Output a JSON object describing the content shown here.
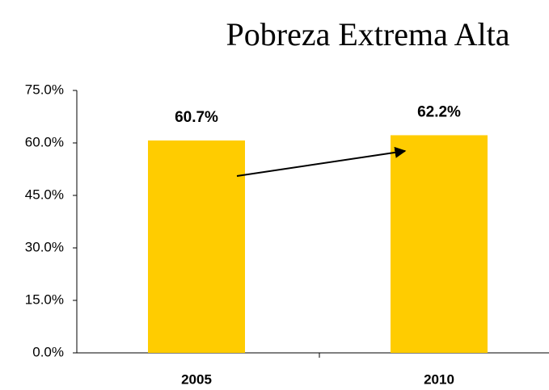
{
  "chart_data": {
    "type": "bar",
    "title": "Pobreza Extrema Alta",
    "categories": [
      "2005",
      "2010"
    ],
    "values": [
      60.7,
      62.2
    ],
    "value_labels": [
      "60.7%",
      "62.2%"
    ],
    "color": "#ffcc00",
    "ylim": [
      0,
      75
    ],
    "yticks": [
      {
        "value": 0,
        "label": "0.0%"
      },
      {
        "value": 15,
        "label": "15.0%"
      },
      {
        "value": 30,
        "label": "30.0%"
      },
      {
        "value": 45,
        "label": "45.0%"
      },
      {
        "value": 60,
        "label": "60.0%"
      },
      {
        "value": 75,
        "label": "75.0%"
      }
    ],
    "grid": false
  }
}
